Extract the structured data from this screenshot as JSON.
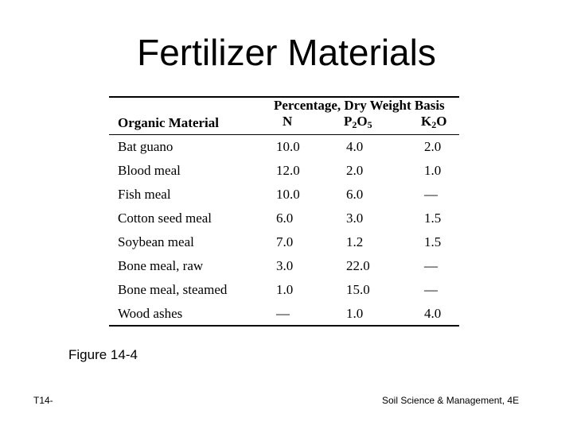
{
  "title": "Fertilizer Materials",
  "table": {
    "group_header": "Percentage, Dry Weight Basis",
    "col_material": "Organic Material",
    "col_n": "N",
    "col_p_main": "P",
    "col_p_sub1": "2",
    "col_p_mid": "O",
    "col_p_sub2": "5",
    "col_k_main": "K",
    "col_k_sub": "2",
    "col_k_end": "O",
    "rows": [
      {
        "name": "Bat guano",
        "n": "10.0",
        "p": "4.0",
        "k": "2.0"
      },
      {
        "name": "Blood meal",
        "n": "12.0",
        "p": "2.0",
        "k": "1.0"
      },
      {
        "name": "Fish meal",
        "n": "10.0",
        "p": "6.0",
        "k": "—"
      },
      {
        "name": "Cotton seed meal",
        "n": "6.0",
        "p": "3.0",
        "k": "1.5"
      },
      {
        "name": "Soybean meal",
        "n": "7.0",
        "p": "1.2",
        "k": "1.5"
      },
      {
        "name": "Bone meal, raw",
        "n": "3.0",
        "p": "22.0",
        "k": "—"
      },
      {
        "name": "Bone meal, steamed",
        "n": "1.0",
        "p": "15.0",
        "k": "—"
      },
      {
        "name": "Wood ashes",
        "n": "—",
        "p": "1.0",
        "k": "4.0"
      }
    ]
  },
  "caption": "Figure 14-4",
  "footer": {
    "left": "T14-",
    "right": "Soil Science & Management, 4E"
  }
}
